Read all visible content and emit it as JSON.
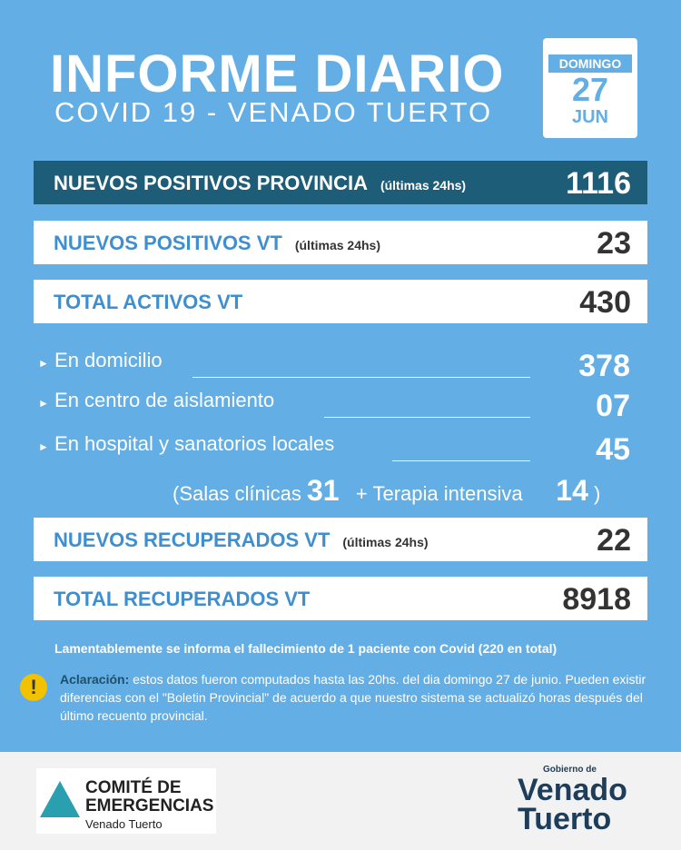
{
  "header": {
    "title": "INFORME DIARIO",
    "subtitle": "COVID 19 - VENADO TUERTO",
    "calendar": {
      "weekday": "DOMINGO",
      "day": "27",
      "month": "JUN"
    }
  },
  "rows": [
    {
      "label": "NUEVOS POSITIVOS PROVINCIA",
      "note": "(últimas 24hs)",
      "value": 1116
    },
    {
      "label": "NUEVOS POSITIVOS VT",
      "note": "(últimas 24hs)",
      "value": 23
    },
    {
      "label": "TOTAL ACTIVOS VT",
      "value": 430
    }
  ],
  "breakdown": [
    {
      "label": "En domicilio",
      "value": 378
    },
    {
      "label": "En centro de aislamiento",
      "value": "07"
    },
    {
      "label": "En hospital y sanatorios locales",
      "value": 45
    }
  ],
  "hospital_detail": {
    "open": "(Salas clínicas",
    "salas": 31,
    "plus": "+",
    "terapia_label": "Terapia intensiva",
    "terapia": 14,
    "close": ")"
  },
  "recovered": [
    {
      "label": "NUEVOS RECUPERADOS VT",
      "note": "(últimas 24hs)",
      "value": 22
    },
    {
      "label": "TOTAL RECUPERADOS VT",
      "value": 8918
    }
  ],
  "notice": "Lamentablemente se informa el fallecimiento de 1 paciente con Covid (220 en total)",
  "clarification": {
    "label": "Aclaración:",
    "text": "estos datos fueron computados hasta las 20hs. del dia domingo 27 de junio. Pueden existir diferencias con el \"Boletin Provincial\" de acuerdo a que nuestro sistema se actualizó horas después del último recuento provincial."
  },
  "footer": {
    "committee": {
      "line1": "COMITÉ DE",
      "line2": "EMERGENCIAS",
      "line3": "Venado Tuerto"
    },
    "government": {
      "line1": "Gobierno de",
      "line2": "Venado",
      "line3": "Tuerto"
    }
  }
}
